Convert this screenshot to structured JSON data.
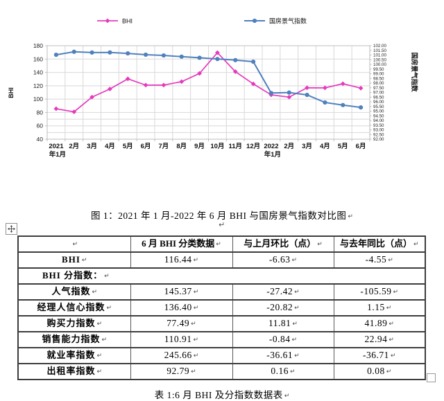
{
  "marks": {
    "end_of_cell": "↵",
    "paragraph": "↵"
  },
  "icons": {
    "table_move": "four-way-move-icon",
    "table_resize": "resize-handle-icon"
  },
  "figure": {
    "caption": "图 1：2021 年 1 月-2022 年 6 月 BHI 与国房景气指数对比图"
  },
  "chart_data": {
    "type": "line",
    "legend_position": "top",
    "grid": true,
    "categories": [
      "2021",
      "2月",
      "3月",
      "4月",
      "5月",
      "6月",
      "7月",
      "8月",
      "9月",
      "10月",
      "11月",
      "12月",
      "2022",
      "2月",
      "3月",
      "4月",
      "5月",
      "6月"
    ],
    "x_sublabels": {
      "0": "年1月",
      "12": "年1月"
    },
    "series": [
      {
        "name": "BHI",
        "axis": "left",
        "color": "#e43bbd",
        "marker": "diamond",
        "values": [
          85.6,
          81.0,
          103.0,
          115.2,
          130.4,
          121.0,
          121.0,
          126.2,
          138.5,
          169.6,
          141.2,
          122.8,
          106.4,
          103.0,
          117.0,
          116.9,
          123.07,
          116.44
        ]
      },
      {
        "name": "国房景气指数",
        "axis": "right",
        "color": "#4f81bd",
        "marker": "circle",
        "values": [
          101.03,
          101.35,
          101.27,
          101.28,
          101.18,
          101.04,
          100.96,
          100.83,
          100.71,
          100.58,
          100.46,
          100.29,
          96.94,
          96.99,
          96.74,
          95.93,
          95.65,
          95.4
        ]
      }
    ],
    "left_axis": {
      "title": "BHI",
      "min": 40,
      "max": 180,
      "ticks": [
        "180",
        "160",
        "140",
        "120",
        "100",
        "80",
        "60",
        "40"
      ]
    },
    "right_axis": {
      "title": "国房景气指数",
      "min": 92,
      "max": 102,
      "ticks": [
        "102.00",
        "101.50",
        "101.00",
        "100.50",
        "100.00",
        "99.50",
        "99.00",
        "98.50",
        "98.00",
        "97.50",
        "97.00",
        "96.50",
        "96.00",
        "95.50",
        "95.00",
        "94.50",
        "94.00",
        "93.50",
        "93.00",
        "92.50",
        "92.00"
      ]
    },
    "gridlines_left_values": [
      160,
      140,
      120,
      100,
      80,
      70,
      60,
      50
    ],
    "colors": {
      "grid": "#d8d8d8",
      "axis": "#bdbdbd",
      "tick_text": "#222222"
    }
  },
  "table": {
    "header": [
      "",
      "6 月 BHI 分类数据",
      "与上月环比（点）",
      "与去年同比（点）"
    ],
    "rows": [
      {
        "label": "BHI",
        "values": [
          "116.44",
          "-6.63",
          "-4.55"
        ]
      },
      {
        "label": "BHI 分指数：",
        "merged": true
      },
      {
        "label": "人气指数",
        "values": [
          "145.37",
          "-27.42",
          "-105.59"
        ]
      },
      {
        "label": "经理人信心指数",
        "values": [
          "136.40",
          "-20.82",
          "1.15"
        ]
      },
      {
        "label": "购买力指数",
        "values": [
          "77.49",
          "11.81",
          "41.89"
        ]
      },
      {
        "label": "销售能力指数",
        "values": [
          "110.91",
          "-0.84",
          "22.94"
        ]
      },
      {
        "label": "就业率指数",
        "values": [
          "245.66",
          "-36.61",
          "-36.71"
        ]
      },
      {
        "label": "出租率指数",
        "values": [
          "92.79",
          "0.16",
          "0.08"
        ]
      }
    ],
    "caption": "表 1:6 月 BHI 及分指数数据表"
  }
}
